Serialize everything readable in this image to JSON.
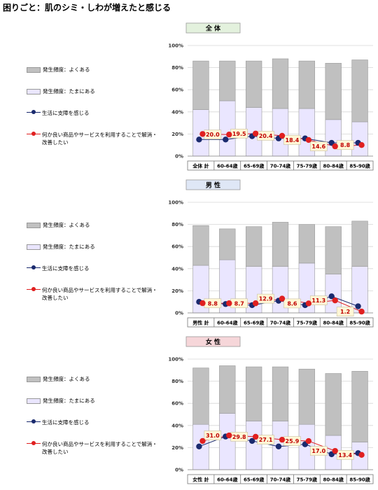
{
  "page_title": "困りごと：肌のシミ・しわが増えたと感じる",
  "colors": {
    "often": "#c0c0c0",
    "sometimes": "#eae6ff",
    "navy_series": "#1a2a6e",
    "red_series": "#e02020",
    "label_bg": "#fff7d6",
    "title_all": "#e3f1dd",
    "title_male": "#dfe7f6",
    "title_female": "#f6d6d9"
  },
  "legend": {
    "often": "発生頻度：よくある",
    "sometimes": "発生頻度：たまにある",
    "hardship": "生活に支障を感じる",
    "solution_line1": "何か良い商品やサービスを利用することで解消・",
    "solution_line2": "改善したい"
  },
  "chart_data": [
    {
      "type": "bar",
      "title": "全 体",
      "categories": [
        "全体 計",
        "60-64歳",
        "65-69歳",
        "70-74歳",
        "75-79歳",
        "80-84歳",
        "85-90歳"
      ],
      "ylim": [
        0,
        100
      ],
      "yticks": [
        "0%",
        "20%",
        "40%",
        "60%",
        "80%",
        "100%"
      ],
      "series": [
        {
          "name": "発生頻度：たまにある",
          "kind": "stacked-bar",
          "values": [
            42,
            50,
            44,
            43,
            43,
            33,
            31
          ]
        },
        {
          "name": "発生頻度：よくある",
          "kind": "stacked-bar",
          "values": [
            44,
            36,
            42,
            45,
            43,
            51,
            56
          ]
        },
        {
          "name": "生活に支障を感じる",
          "kind": "line",
          "values": [
            15,
            15,
            18,
            16,
            16,
            12,
            12
          ]
        },
        {
          "name": "何か良い商品やサービスを利用することで解消・改善したい",
          "kind": "line",
          "values": [
            20.0,
            19.5,
            20.4,
            18.4,
            14.6,
            8.8,
            10
          ]
        }
      ],
      "data_labels": [
        "20.0",
        "19.5",
        "20.4",
        "18.4",
        "14.6",
        "8.8"
      ]
    },
    {
      "type": "bar",
      "title": "男 性",
      "categories": [
        "男性 計",
        "60-64歳",
        "65-69歳",
        "70-74歳",
        "75-79歳",
        "80-84歳",
        "85-90歳"
      ],
      "ylim": [
        0,
        100
      ],
      "yticks": [
        "0%",
        "20%",
        "40%",
        "60%",
        "80%",
        "100%"
      ],
      "series": [
        {
          "name": "発生頻度：たまにある",
          "kind": "stacked-bar",
          "values": [
            43,
            48,
            42,
            42,
            45,
            35,
            42
          ]
        },
        {
          "name": "発生頻度：よくある",
          "kind": "stacked-bar",
          "values": [
            36,
            28,
            36,
            40,
            35,
            43,
            41
          ]
        },
        {
          "name": "生活に支障を感じる",
          "kind": "line",
          "values": [
            10,
            8,
            7,
            11,
            7,
            15,
            6
          ]
        },
        {
          "name": "何か良い商品やサービスを利用することで解消・改善したい",
          "kind": "line",
          "values": [
            8.8,
            8.7,
            8.7,
            12.9,
            8.6,
            11.3,
            1.2
          ]
        }
      ],
      "data_labels": [
        "8.8",
        "8.7",
        "12.9",
        "8.6",
        "11.3",
        "1.2"
      ]
    },
    {
      "type": "bar",
      "title": "女 性",
      "categories": [
        "女性 計",
        "60-64歳",
        "65-69歳",
        "70-74歳",
        "75-79歳",
        "80-84歳",
        "85-90歳"
      ],
      "ylim": [
        0,
        100
      ],
      "yticks": [
        "0%",
        "20%",
        "40%",
        "60%",
        "80%",
        "100%"
      ],
      "series": [
        {
          "name": "発生頻度：たまにある",
          "kind": "stacked-bar",
          "values": [
            41,
            51,
            44,
            44,
            41,
            31,
            25
          ]
        },
        {
          "name": "発生頻度：よくある",
          "kind": "stacked-bar",
          "values": [
            51,
            43,
            49,
            49,
            50,
            56,
            64
          ]
        },
        {
          "name": "生活に支障を感じる",
          "kind": "line",
          "values": [
            21,
            30,
            26,
            21,
            23,
            14,
            15
          ]
        },
        {
          "name": "何か良い商品やサービスを利用することで解消・改善したい",
          "kind": "line",
          "values": [
            26,
            31.0,
            29.8,
            27.1,
            25.9,
            17.0,
            13.4
          ]
        }
      ],
      "data_labels": [
        "31.0",
        "29.8",
        "27.1",
        "25.9",
        "17.0",
        "13.4"
      ]
    }
  ]
}
